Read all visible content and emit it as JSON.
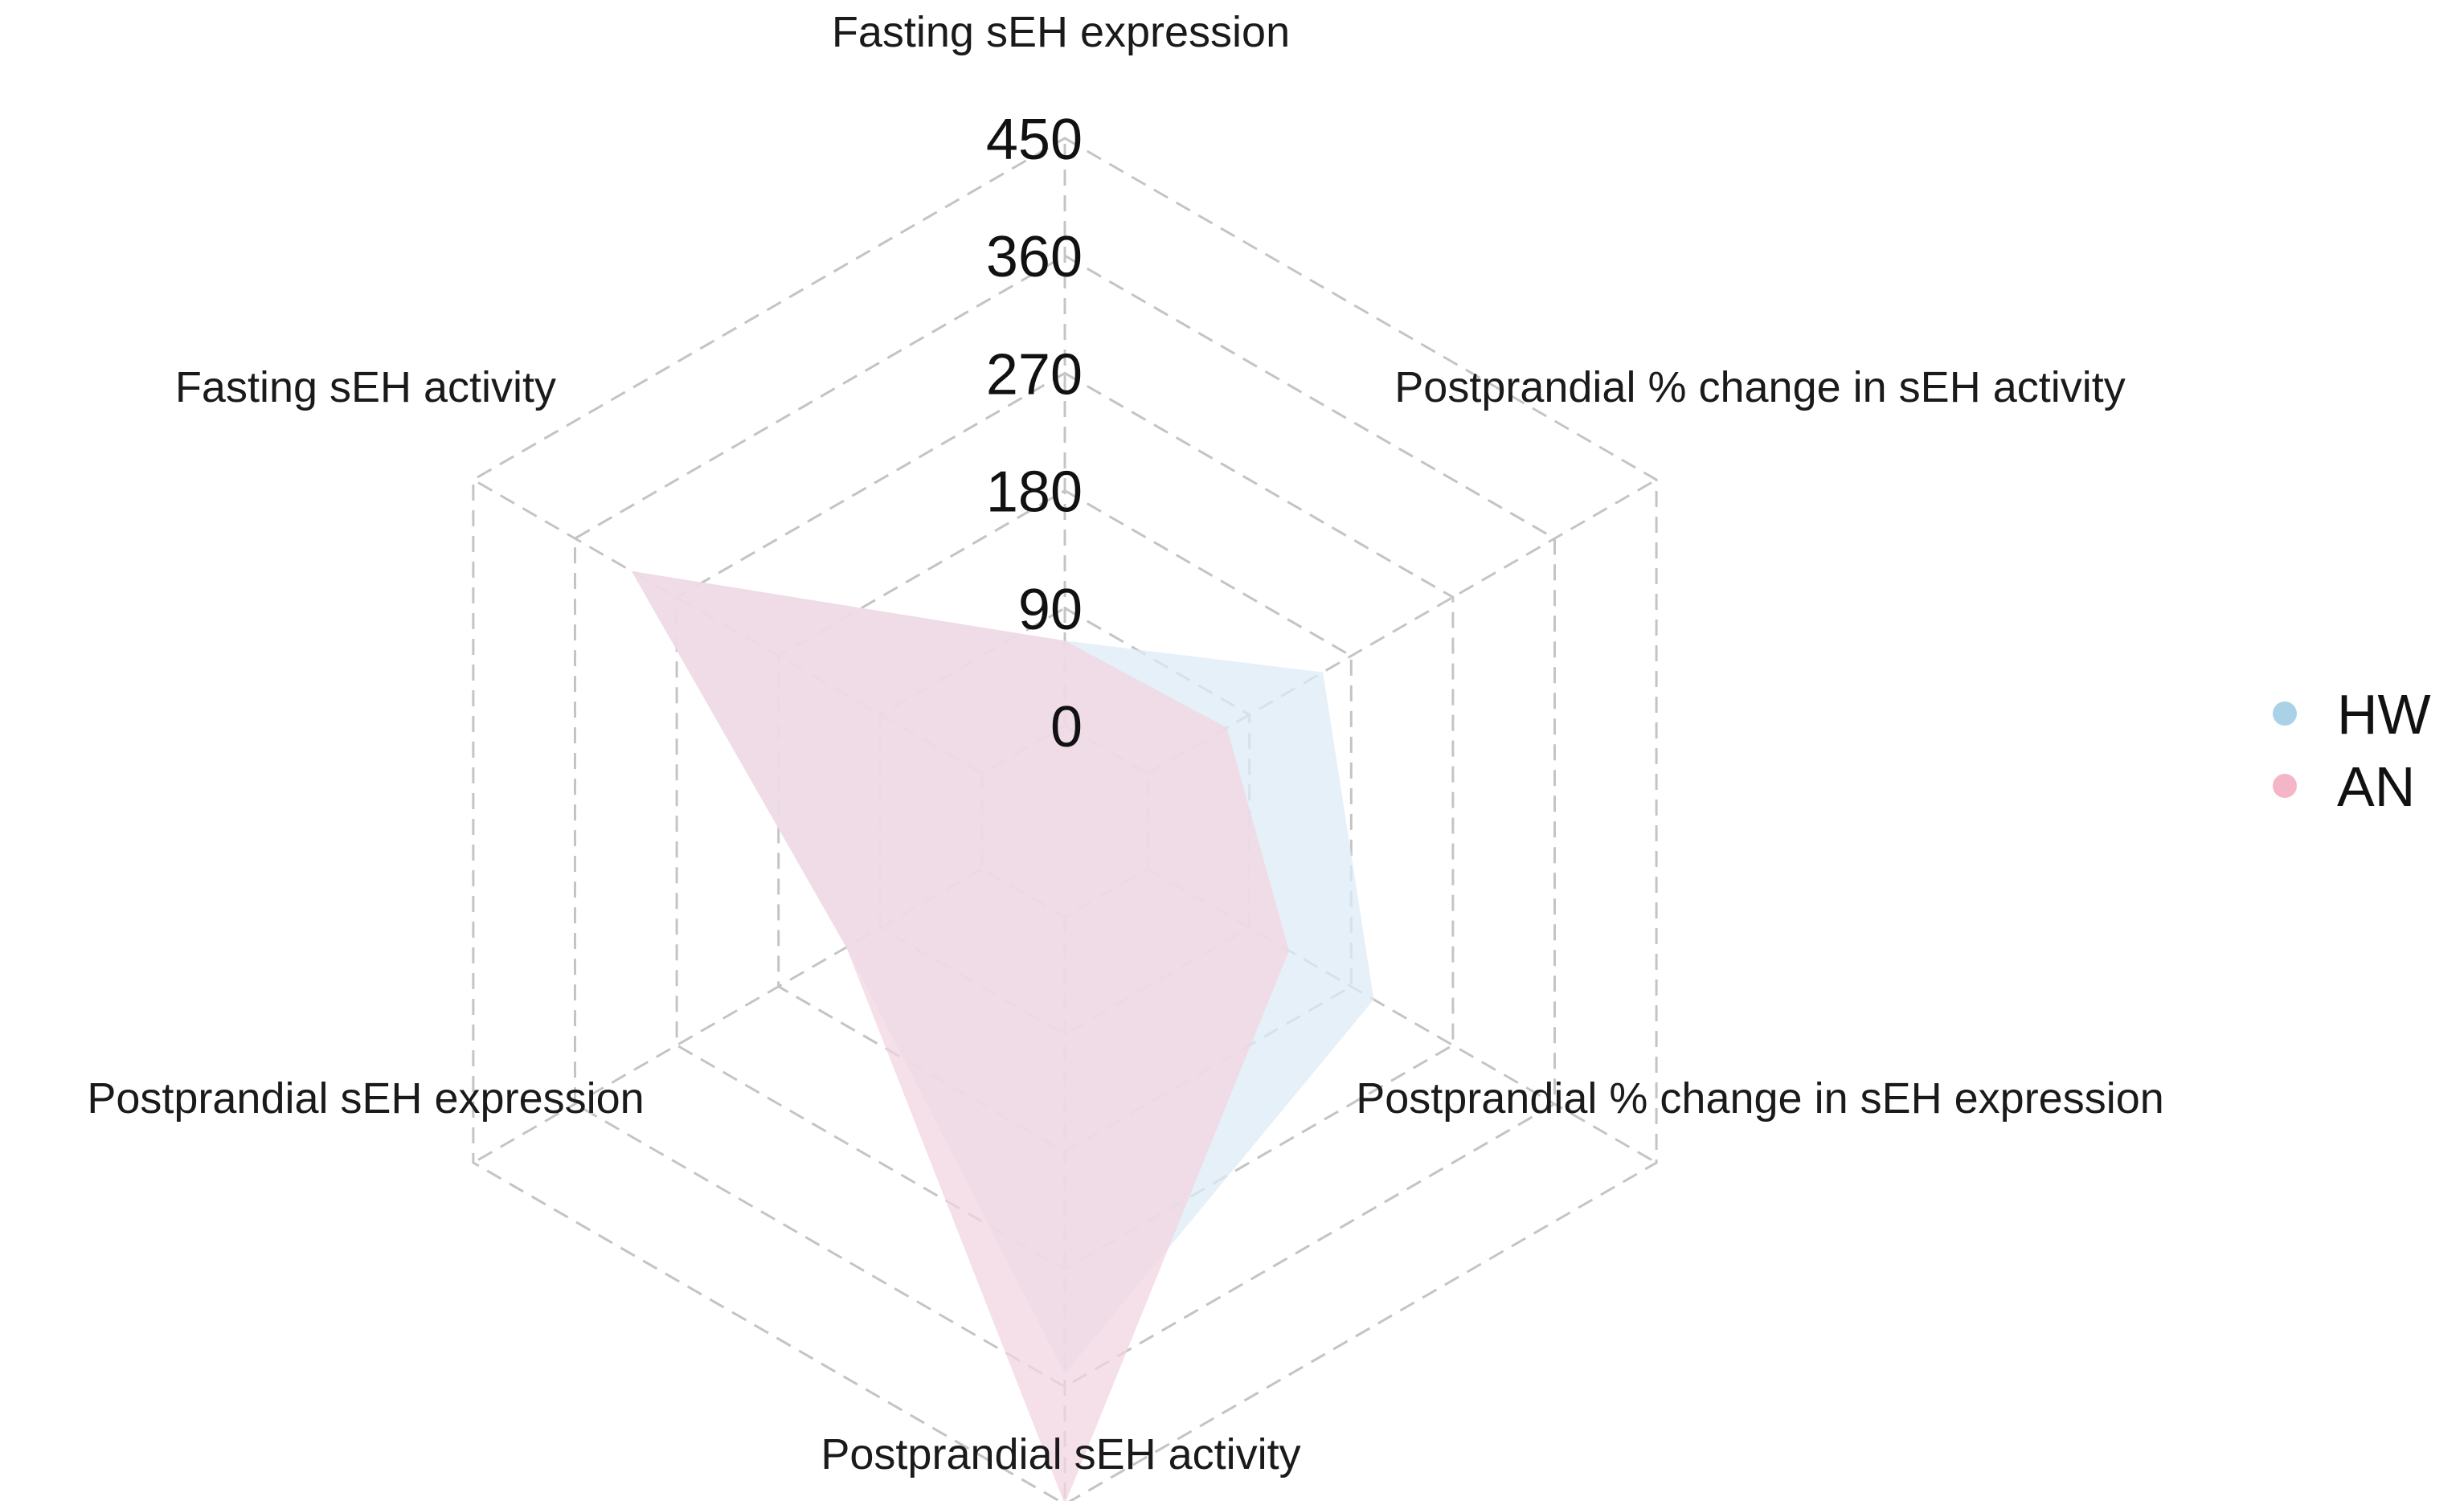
{
  "chart_data": {
    "type": "radar",
    "axes": [
      "Fasting sEH expression",
      "Postprandial % change in sEH activity",
      "Postprandial % change in sEH expression",
      "Postprandial sEH activity",
      "Postprandial sEH expression",
      "Fasting sEH activity"
    ],
    "range": [
      0,
      450
    ],
    "ticks": [
      "0",
      "90",
      "180",
      "270",
      "360",
      "450"
    ],
    "tick_values": [
      0,
      90,
      180,
      270,
      360,
      450
    ],
    "grid": true,
    "series": [
      {
        "name": "HW",
        "color": "#a9d2e6",
        "fill_color": "#dcebf5",
        "values": [
          65,
          155,
          200,
          350,
          120,
          310
        ]
      },
      {
        "name": "AN",
        "color": "#f4b6c6",
        "fill_color": "#f2d6e2",
        "values": [
          65,
          70,
          125,
          450,
          120,
          310
        ]
      }
    ],
    "legend": {
      "position": "right",
      "entries": [
        "HW",
        "AN"
      ]
    }
  }
}
